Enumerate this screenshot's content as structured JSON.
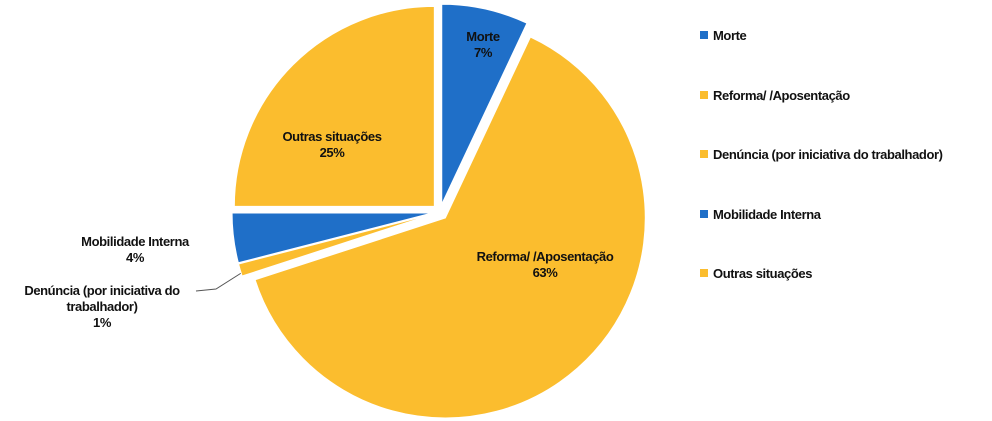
{
  "chart_data": {
    "type": "pie",
    "categories": [
      "Morte",
      "Reforma/ /Aposentação",
      "Denúncia (por iniciativa do trabalhador)",
      "Mobilidade Interna",
      "Outras situações"
    ],
    "values": [
      7,
      63,
      1,
      4,
      25
    ],
    "value_labels": [
      "7%",
      "63%",
      "1%",
      "4%",
      "25%"
    ],
    "colors": [
      "#1f6fc8",
      "#fbbd2e",
      "#fbbd2e",
      "#1f6fc8",
      "#fbbd2e"
    ],
    "legend": "right"
  }
}
